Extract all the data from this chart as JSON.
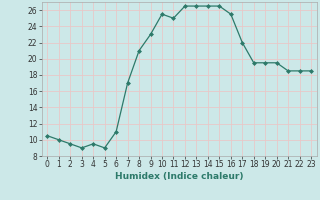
{
  "x": [
    0,
    1,
    2,
    3,
    4,
    5,
    6,
    7,
    8,
    9,
    10,
    11,
    12,
    13,
    14,
    15,
    16,
    17,
    18,
    19,
    20,
    21,
    22,
    23
  ],
  "y": [
    10.5,
    10.0,
    9.5,
    9.0,
    9.5,
    9.0,
    11.0,
    17.0,
    21.0,
    23.0,
    25.5,
    25.0,
    26.5,
    26.5,
    26.5,
    26.5,
    25.5,
    22.0,
    19.5,
    19.5,
    19.5,
    18.5,
    18.5,
    18.5
  ],
  "xlabel": "Humidex (Indice chaleur)",
  "xlim": [
    -0.5,
    23.5
  ],
  "ylim": [
    8,
    27
  ],
  "yticks": [
    8,
    10,
    12,
    14,
    16,
    18,
    20,
    22,
    24,
    26
  ],
  "xticks": [
    0,
    1,
    2,
    3,
    4,
    5,
    6,
    7,
    8,
    9,
    10,
    11,
    12,
    13,
    14,
    15,
    16,
    17,
    18,
    19,
    20,
    21,
    22,
    23
  ],
  "line_color": "#2d7a6a",
  "bg_color": "#cce8e8",
  "grid_color": "#e8c8c8",
  "marker": "D",
  "marker_size": 2.0,
  "line_width": 0.9,
  "tick_fontsize": 5.5,
  "xlabel_fontsize": 6.5,
  "xlabel_color": "#2d7a6a"
}
